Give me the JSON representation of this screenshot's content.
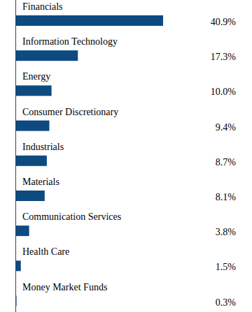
{
  "chart_data": {
    "type": "bar",
    "orientation": "horizontal",
    "categories": [
      "Financials",
      "Information Technology",
      "Energy",
      "Consumer Discretionary",
      "Industrials",
      "Materials",
      "Communication Services",
      "Health Care",
      "Money Market Funds"
    ],
    "values": [
      40.9,
      17.3,
      10.0,
      9.4,
      8.7,
      8.1,
      3.8,
      1.5,
      0.3
    ],
    "value_labels": [
      "40.9%",
      "17.3%",
      "10.0%",
      "9.4%",
      "8.7%",
      "8.1%",
      "3.8%",
      "1.5%",
      "0.3%"
    ],
    "data_labels": true,
    "color": "#0d4a80"
  }
}
